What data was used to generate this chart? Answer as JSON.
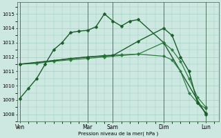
{
  "background_color": "#cce8e0",
  "grid_color": "#99ccbb",
  "line_color_dark": "#1a5c2a",
  "line_color_medium": "#2e7d40",
  "ylabel": "Pression niveau de la mer( hPa )",
  "ylim": [
    1007.5,
    1015.8
  ],
  "yticks": [
    1008,
    1009,
    1010,
    1011,
    1012,
    1013,
    1014,
    1015
  ],
  "day_labels": [
    "Ven",
    "Mar",
    "Sam",
    "Dim",
    "Lun"
  ],
  "day_positions": [
    0,
    8,
    11,
    17,
    22
  ],
  "xlim": [
    -0.3,
    23.5
  ],
  "series": [
    {
      "x": [
        0,
        1,
        2,
        3,
        4,
        5,
        6,
        7,
        8,
        9,
        10,
        11,
        12,
        13,
        14,
        17,
        22
      ],
      "y": [
        1009.1,
        1009.8,
        1010.5,
        1011.5,
        1012.5,
        1013.0,
        1013.7,
        1013.8,
        1013.85,
        1014.1,
        1015.0,
        1014.5,
        1014.15,
        1014.5,
        1014.6,
        1013.0,
        1008.0
      ],
      "marker": "D",
      "markersize": 2.5,
      "linewidth": 1.0,
      "color": "#1a5c2a"
    },
    {
      "x": [
        0,
        2,
        4,
        6,
        8,
        10,
        12,
        14,
        17,
        18,
        19,
        20,
        21,
        22
      ],
      "y": [
        1011.5,
        1011.55,
        1011.7,
        1011.8,
        1011.9,
        1012.0,
        1012.1,
        1012.2,
        1013.0,
        1012.5,
        1011.7,
        1010.5,
        1009.2,
        1008.5
      ],
      "marker": "D",
      "markersize": 2.2,
      "linewidth": 0.9,
      "color": "#2e7d40"
    },
    {
      "x": [
        0,
        2,
        4,
        6,
        8,
        10,
        12,
        14,
        17,
        18,
        19,
        20,
        21,
        22
      ],
      "y": [
        1011.5,
        1011.6,
        1011.75,
        1011.9,
        1012.0,
        1012.1,
        1012.15,
        1012.2,
        1012.05,
        1011.8,
        1011.0,
        1009.5,
        1008.8,
        1008.4
      ],
      "marker": "D",
      "markersize": 2.2,
      "linewidth": 0.9,
      "color": "#2e7d40"
    },
    {
      "x": [
        0,
        8,
        11,
        14,
        17,
        18,
        19,
        20,
        21,
        22
      ],
      "y": [
        1011.5,
        1012.0,
        1012.1,
        1013.1,
        1014.0,
        1013.5,
        1012.0,
        1011.0,
        1008.8,
        1008.1
      ],
      "marker": "D",
      "markersize": 2.5,
      "linewidth": 1.0,
      "color": "#1a5c2a"
    }
  ]
}
